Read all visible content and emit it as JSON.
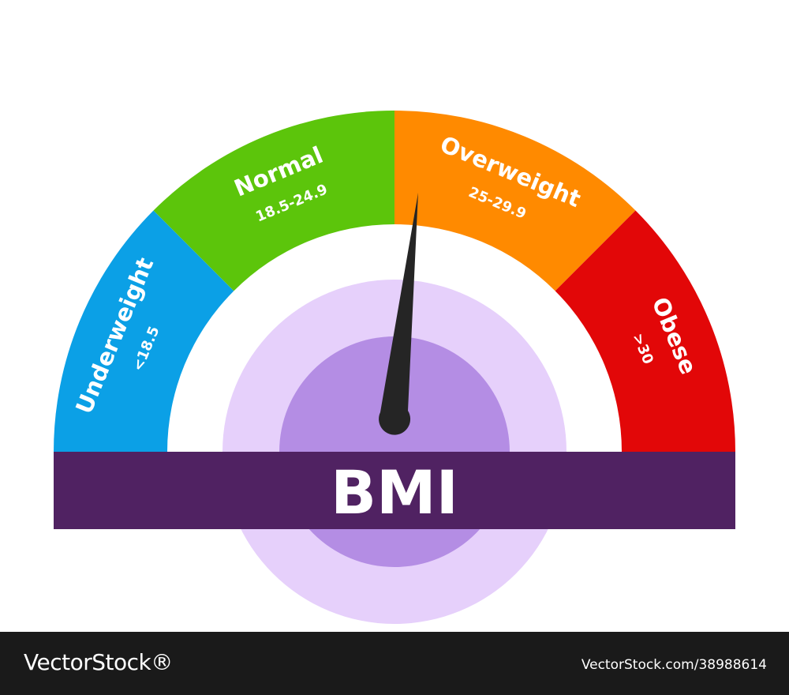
{
  "gauge": {
    "title": "BMI",
    "needle_value": 25.2,
    "segments": [
      {
        "key": "underweight",
        "name": "Underweight",
        "range": "<18.5",
        "color": "#0ba0e6"
      },
      {
        "key": "normal",
        "name": "Normal",
        "range": "18.5-24.9",
        "color": "#5cc50b"
      },
      {
        "key": "overweight",
        "name": "Overweight",
        "range": "25-29.9",
        "color": "#ff8a00"
      },
      {
        "key": "obese",
        "name": "Obese",
        "range": ">30",
        "color": "#e20708"
      }
    ],
    "colors": {
      "band": "#502262",
      "inner_ring_light": "#e6d0fb",
      "inner_ring_dark": "#b48de4",
      "needle": "#252525"
    }
  },
  "footer": {
    "logo": "VectorStock®",
    "image_id": "VectorStock.com/38988614"
  }
}
